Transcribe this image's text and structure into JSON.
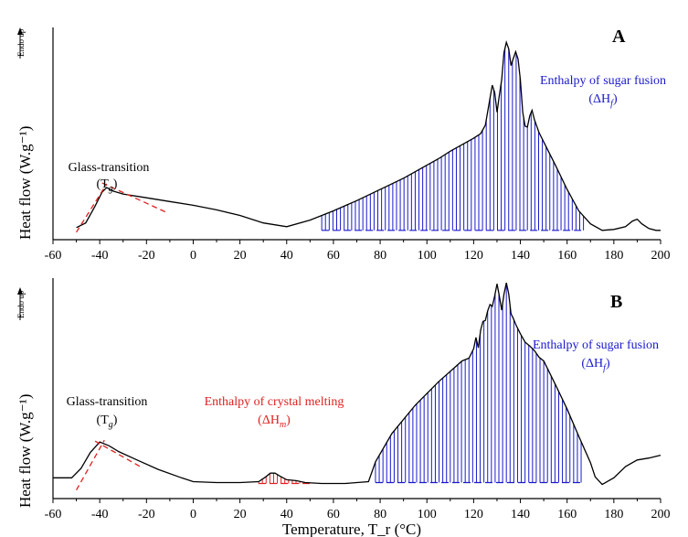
{
  "chart_data": [
    {
      "type": "line",
      "panel_label": "A",
      "ylabel": "Heat flow (W.g⁻¹)",
      "endo_label": "Endo up",
      "xlim": [
        -60,
        200
      ],
      "x_ticks": [
        -60,
        -40,
        -20,
        0,
        20,
        40,
        60,
        80,
        100,
        120,
        140,
        160,
        180,
        200
      ],
      "grid": false,
      "line_color": "#000000",
      "fill_color": "#1a1acc",
      "series": [
        {
          "x": [
            -50,
            -46,
            -42,
            -39,
            -37,
            -34,
            -30,
            -20,
            -10,
            0,
            10,
            20,
            30,
            40,
            50,
            60,
            70,
            80,
            90,
            100,
            105,
            110,
            115,
            120,
            123,
            125,
            127,
            128,
            129,
            130,
            131,
            132,
            133,
            134,
            135,
            136,
            137,
            138,
            139,
            140,
            141,
            142,
            143,
            144,
            145,
            146,
            148,
            150,
            155,
            160,
            165,
            170,
            175,
            180,
            185,
            188,
            190,
            192,
            195,
            198,
            200
          ],
          "y": [
            0.5,
            1.0,
            2.8,
            4.3,
            4.8,
            4.4,
            4.1,
            3.7,
            3.3,
            2.9,
            2.4,
            1.8,
            1.0,
            0.6,
            1.3,
            2.3,
            3.4,
            4.6,
            5.8,
            7.2,
            7.9,
            8.7,
            9.4,
            10.1,
            10.6,
            11.5,
            14.4,
            15.8,
            15.0,
            12.9,
            14.7,
            16.4,
            19.3,
            20.4,
            19.7,
            17.9,
            18.7,
            19.4,
            18.6,
            16.4,
            12.9,
            11.4,
            11.3,
            12.5,
            13.1,
            12.1,
            10.7,
            9.7,
            7.2,
            4.6,
            2.3,
            0.9,
            0.2,
            0.3,
            0.6,
            1.2,
            1.4,
            0.9,
            0.4,
            0.2,
            0.2
          ]
        }
      ],
      "shaded_regions": [
        {
          "name": "sugar_fusion",
          "x_range": [
            55,
            167
          ],
          "color": "#1a1acc",
          "baseline": 0.2
        }
      ],
      "annotations": [
        {
          "text": "Glass-transition",
          "color": "#000000"
        },
        {
          "text": "(T_g)",
          "color": "#000000"
        },
        {
          "text": "Enthalpy of sugar fusion",
          "color": "#1a1acc"
        },
        {
          "text": "(ΔH_f)",
          "color": "#1a1acc"
        }
      ],
      "tangent_lines": [
        {
          "from": [
            -50,
            0.0
          ],
          "to": [
            -37,
            5.2
          ],
          "color": "#e02020",
          "style": "dashed"
        },
        {
          "from": [
            -39,
            5.3
          ],
          "to": [
            -12,
            2.2
          ],
          "color": "#e02020",
          "style": "dashed"
        }
      ]
    },
    {
      "type": "line",
      "panel_label": "B",
      "ylabel": "Heat flow (W.g⁻¹)",
      "endo_label": "Endo up",
      "xlabel": "Temperature, T_r (°C)",
      "xlim": [
        -60,
        200
      ],
      "x_ticks": [
        -60,
        -40,
        -20,
        0,
        20,
        40,
        60,
        80,
        100,
        120,
        140,
        160,
        180,
        200
      ],
      "grid": false,
      "line_color": "#000000",
      "fill_color": "#1a1acc",
      "series": [
        {
          "x": [
            -60,
            -52,
            -48,
            -44,
            -40,
            -36,
            -32,
            -25,
            -15,
            -5,
            0,
            10,
            20,
            28,
            31,
            33,
            35,
            37,
            40,
            44,
            48,
            55,
            65,
            75,
            78,
            85,
            95,
            105,
            115,
            118,
            120,
            121,
            122,
            123,
            124,
            125,
            126,
            127,
            128,
            129,
            130,
            131,
            132,
            133,
            134,
            135,
            136,
            137,
            138,
            140,
            142,
            144,
            146,
            148,
            150,
            155,
            160,
            165,
            170,
            172,
            175,
            180,
            185,
            190,
            195,
            200
          ],
          "y": [
            0.8,
            0.8,
            1.8,
            3.5,
            4.6,
            4.2,
            3.6,
            2.8,
            1.7,
            0.8,
            0.4,
            0.3,
            0.3,
            0.4,
            0.9,
            1.3,
            1.3,
            1.0,
            0.6,
            0.5,
            0.3,
            0.2,
            0.2,
            0.4,
            2.5,
            5.5,
            8.5,
            11.0,
            13.2,
            13.5,
            14.5,
            15.7,
            14.6,
            16.5,
            17.4,
            17.5,
            18.5,
            19.2,
            19.0,
            20.1,
            21.4,
            20.1,
            18.6,
            20.3,
            21.5,
            20.3,
            18.2,
            17.7,
            17.1,
            16.1,
            15.2,
            14.8,
            14.3,
            13.6,
            13.2,
            10.7,
            8.1,
            5.2,
            2.4,
            0.9,
            0.1,
            0.8,
            2.0,
            2.7,
            2.9,
            3.2
          ]
        }
      ],
      "shaded_regions": [
        {
          "name": "crystal_melting",
          "x_range": [
            28,
            50
          ],
          "color": "#e02020",
          "baseline": 0.2
        },
        {
          "name": "sugar_fusion",
          "x_range": [
            78,
            166
          ],
          "color": "#1a1acc",
          "baseline": 0.3
        }
      ],
      "annotations": [
        {
          "text": "Glass-transition",
          "color": "#000000"
        },
        {
          "text": "(T_g)",
          "color": "#000000"
        },
        {
          "text": "Enthalpy of crystal melting",
          "color": "#e02020"
        },
        {
          "text": "(ΔH_m)",
          "color": "#e02020"
        },
        {
          "text": "Enthalpy of sugar fusion",
          "color": "#1a1acc"
        },
        {
          "text": "(ΔH_f)",
          "color": "#1a1acc"
        }
      ],
      "tangent_lines": [
        {
          "from": [
            -50,
            -0.5
          ],
          "to": [
            -38,
            4.8
          ],
          "color": "#e02020",
          "style": "dashed"
        },
        {
          "from": [
            -42,
            4.7
          ],
          "to": [
            -22,
            1.9
          ],
          "color": "#e02020",
          "style": "dashed"
        }
      ]
    }
  ]
}
